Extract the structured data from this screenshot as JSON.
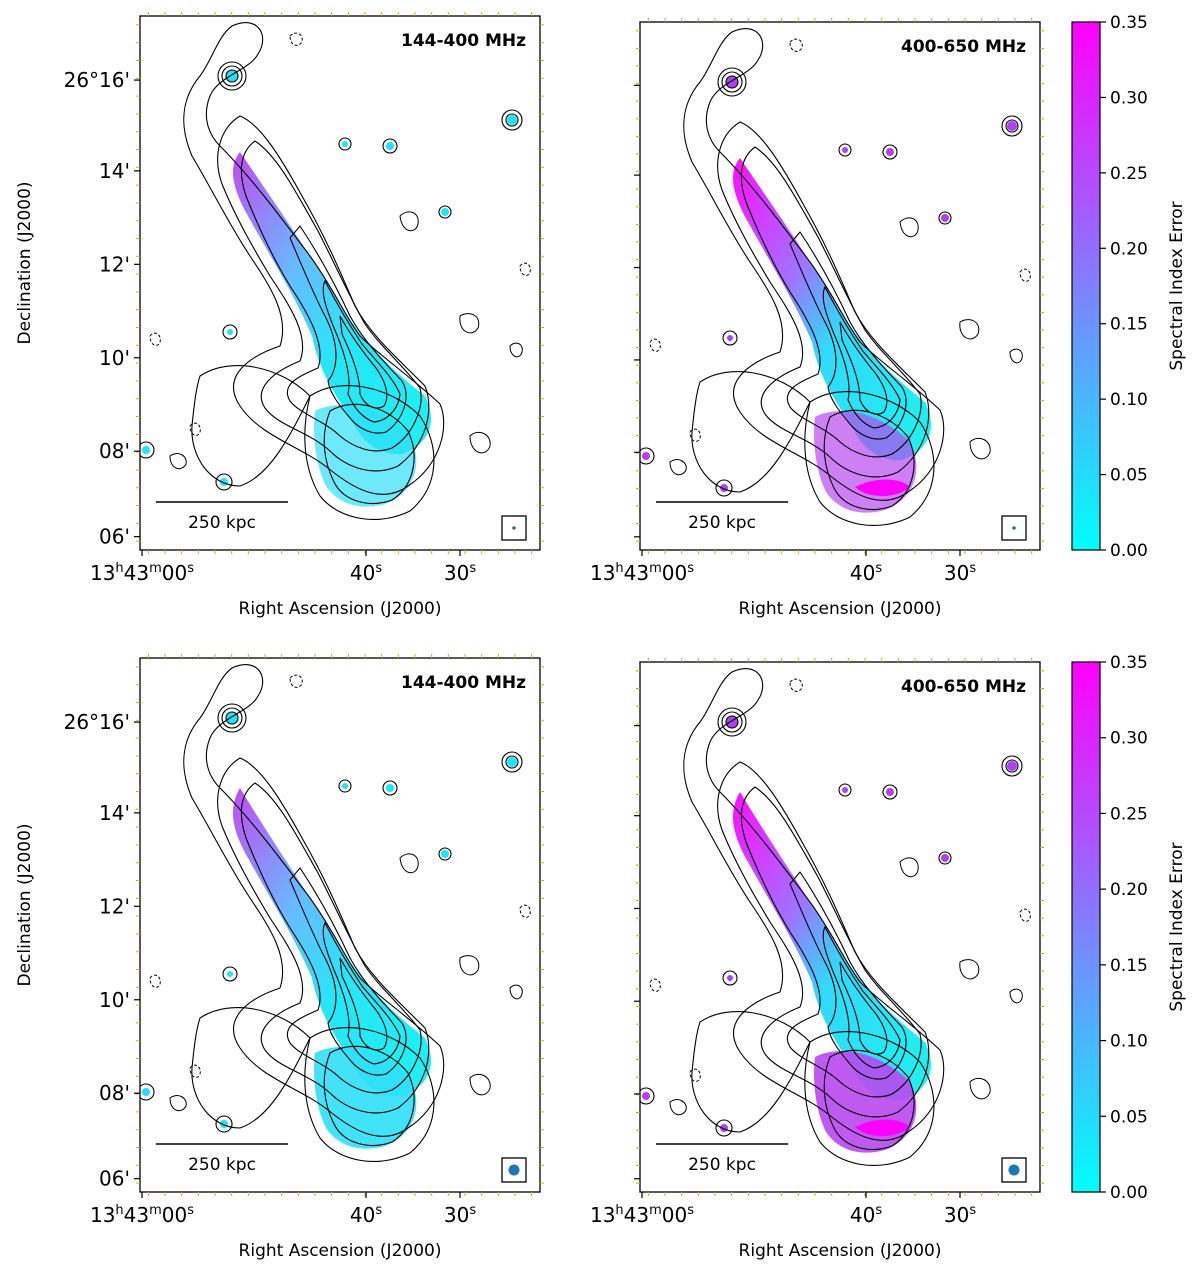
{
  "figure": {
    "panels": [
      {
        "id": "top-left",
        "band_label": "144-400 MHz",
        "scale_bar_label": "250 kpc",
        "dec_ticks": [
          "26°16'",
          "14'",
          "12'",
          "10'",
          "08'",
          "06'"
        ],
        "ra_ticks": [
          "13h43m00s",
          "40s",
          "30s"
        ],
        "ra_tick_parts": [
          {
            "h": "13",
            "m": "43",
            "s": "00"
          },
          {
            "s": "40"
          },
          {
            "s": "30"
          }
        ],
        "xlabel": "Right Ascension (J2000)",
        "ylabel": "Declination (J2000)",
        "beam": "small"
      },
      {
        "id": "top-right",
        "band_label": "400-650 MHz",
        "scale_bar_label": "250 kpc",
        "dec_ticks": [],
        "ra_ticks": [
          "13h43m00s",
          "40s",
          "30s"
        ],
        "ra_tick_parts": [
          {
            "h": "13",
            "m": "43",
            "s": "00"
          },
          {
            "s": "40"
          },
          {
            "s": "30"
          }
        ],
        "xlabel": "Right Ascension (J2000)",
        "ylabel": "",
        "beam": "small"
      },
      {
        "id": "bottom-left",
        "band_label": "144-400 MHz",
        "scale_bar_label": "250 kpc",
        "dec_ticks": [
          "26°16'",
          "14'",
          "12'",
          "10'",
          "08'",
          "06'"
        ],
        "ra_ticks": [
          "13h43m00s",
          "40s",
          "30s"
        ],
        "ra_tick_parts": [
          {
            "h": "13",
            "m": "43",
            "s": "00"
          },
          {
            "s": "40"
          },
          {
            "s": "30"
          }
        ],
        "xlabel": "Right Ascension (J2000)",
        "ylabel": "Declination (J2000)",
        "beam": "large"
      },
      {
        "id": "bottom-right",
        "band_label": "400-650 MHz",
        "scale_bar_label": "250 kpc",
        "dec_ticks": [],
        "ra_ticks": [
          "13h43m00s",
          "40s",
          "30s"
        ],
        "ra_tick_parts": [
          {
            "h": "13",
            "m": "43",
            "s": "00"
          },
          {
            "s": "40"
          },
          {
            "s": "30"
          }
        ],
        "xlabel": "Right Ascension (J2000)",
        "ylabel": "",
        "beam": "large"
      }
    ],
    "colorbar": {
      "label": "Spectral Index Error",
      "ticks": [
        "0.35",
        "0.30",
        "0.25",
        "0.20",
        "0.15",
        "0.10",
        "0.05",
        "0.00"
      ],
      "range": [
        0.0,
        0.35
      ],
      "colormap": "cool",
      "colors": {
        "low": "#00ffff",
        "high": "#ff00ff"
      }
    },
    "colors": {
      "contour": "#000000",
      "tick_mark": "#e6a400",
      "beam": "#1f77b4"
    }
  }
}
